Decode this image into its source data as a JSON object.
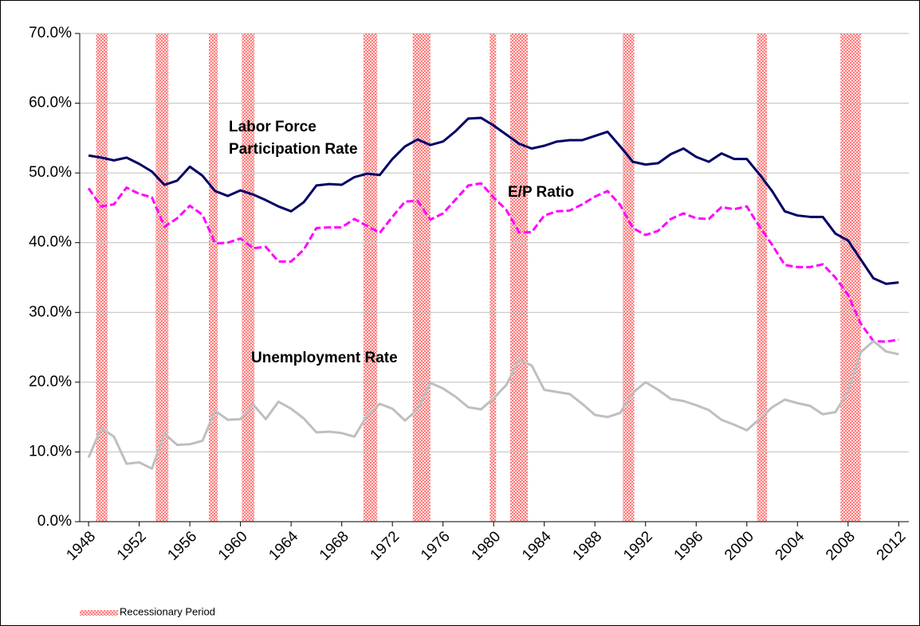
{
  "chart_data": {
    "type": "line",
    "x": [
      1948,
      1949,
      1950,
      1951,
      1952,
      1953,
      1954,
      1955,
      1956,
      1957,
      1958,
      1959,
      1960,
      1961,
      1962,
      1963,
      1964,
      1965,
      1966,
      1967,
      1968,
      1969,
      1970,
      1971,
      1972,
      1973,
      1974,
      1975,
      1976,
      1977,
      1978,
      1979,
      1980,
      1981,
      1982,
      1983,
      1984,
      1985,
      1986,
      1987,
      1988,
      1989,
      1990,
      1991,
      1992,
      1993,
      1994,
      1995,
      1996,
      1997,
      1998,
      1999,
      2000,
      2001,
      2002,
      2003,
      2004,
      2005,
      2006,
      2007,
      2008,
      2009,
      2010,
      2011,
      2012
    ],
    "series": [
      {
        "name": "Labor Force Participation Rate",
        "color": "#000066",
        "dash": false,
        "values": [
          52.5,
          52.2,
          51.8,
          52.2,
          51.3,
          50.2,
          48.3,
          48.9,
          50.9,
          49.6,
          47.4,
          46.7,
          47.5,
          46.9,
          46.1,
          45.2,
          44.5,
          45.8,
          48.2,
          48.4,
          48.3,
          49.4,
          49.9,
          49.7,
          52.0,
          53.8,
          54.8,
          54.0,
          54.5,
          56.0,
          57.8,
          57.9,
          56.8,
          55.5,
          54.2,
          53.5,
          53.9,
          54.5,
          54.7,
          54.7,
          55.3,
          55.9,
          53.8,
          51.6,
          51.2,
          51.4,
          52.7,
          53.5,
          52.3,
          51.6,
          52.8,
          52.0,
          52.0,
          49.8,
          47.4,
          44.5,
          43.9,
          43.7,
          43.7,
          41.3,
          40.3,
          37.6,
          34.9,
          34.1,
          34.3
        ]
      },
      {
        "name": "E/P Ratio",
        "color": "#ff00ff",
        "dash": true,
        "values": [
          47.8,
          45.2,
          45.5,
          47.9,
          47.0,
          46.5,
          42.3,
          43.5,
          45.3,
          44.0,
          39.9,
          40.0,
          40.6,
          39.2,
          39.4,
          37.3,
          37.3,
          39.0,
          42.1,
          42.2,
          42.2,
          43.4,
          42.4,
          41.4,
          43.7,
          45.9,
          46.0,
          43.3,
          44.2,
          46.2,
          48.2,
          48.5,
          46.5,
          44.7,
          41.5,
          41.5,
          43.9,
          44.5,
          44.6,
          45.5,
          46.6,
          47.4,
          45.4,
          42.1,
          41.1,
          41.7,
          43.4,
          44.2,
          43.5,
          43.4,
          45.1,
          44.8,
          45.2,
          42.3,
          39.7,
          36.8,
          36.5,
          36.5,
          36.9,
          35.0,
          32.5,
          28.4,
          25.9,
          25.8,
          26.1
        ]
      },
      {
        "name": "Unemployment Rate",
        "color": "#bfbfbf",
        "dash": false,
        "values": [
          9.2,
          13.4,
          12.2,
          8.3,
          8.5,
          7.6,
          12.6,
          11.0,
          11.1,
          11.6,
          15.9,
          14.6,
          14.7,
          16.8,
          14.7,
          17.2,
          16.2,
          14.8,
          12.8,
          12.9,
          12.7,
          12.2,
          15.2,
          16.9,
          16.2,
          14.5,
          16.1,
          19.9,
          19.1,
          17.9,
          16.4,
          16.1,
          17.7,
          19.6,
          23.2,
          22.4,
          18.9,
          18.6,
          18.3,
          16.9,
          15.3,
          15.0,
          15.6,
          18.5,
          20.0,
          18.9,
          17.6,
          17.3,
          16.7,
          16.0,
          14.6,
          13.9,
          13.1,
          14.7,
          16.4,
          17.5,
          17.0,
          16.6,
          15.4,
          15.7,
          18.7,
          24.3,
          25.9,
          24.4,
          24.0
        ]
      }
    ],
    "annotations": [
      [
        "Labor Force",
        "Participation Rate"
      ],
      "E/P Ratio",
      "Unemployment Rate"
    ],
    "recessions": {
      "name": "Recessionary Period",
      "periods": [
        [
          1948.6,
          1949.5
        ],
        [
          1953.3,
          1954.3
        ],
        [
          1957.5,
          1958.2
        ],
        [
          1960.1,
          1961.1
        ],
        [
          1969.7,
          1970.8
        ],
        [
          1973.6,
          1975.0
        ],
        [
          1979.7,
          1980.2
        ],
        [
          1981.3,
          1982.7
        ],
        [
          1990.2,
          1991.1
        ],
        [
          2000.8,
          2001.6
        ],
        [
          2007.4,
          2009.0
        ]
      ]
    },
    "xlim": [
      1947.3,
      2012.8
    ],
    "xticks": [
      1948,
      1952,
      1956,
      1960,
      1964,
      1968,
      1972,
      1976,
      1980,
      1984,
      1988,
      1992,
      1996,
      2000,
      2004,
      2008,
      2012
    ],
    "ylim": [
      0,
      70
    ],
    "yticks": [
      {
        "value": 0,
        "label": "0.0%"
      },
      {
        "value": 10,
        "label": "10.0%"
      },
      {
        "value": 20,
        "label": "20.0%"
      },
      {
        "value": 30,
        "label": "30.0%"
      },
      {
        "value": 40,
        "label": "40.0%"
      },
      {
        "value": 50,
        "label": "50.0%"
      },
      {
        "value": 60,
        "label": "60.0%"
      },
      {
        "value": 70,
        "label": "70.0%"
      }
    ],
    "grid": true
  }
}
